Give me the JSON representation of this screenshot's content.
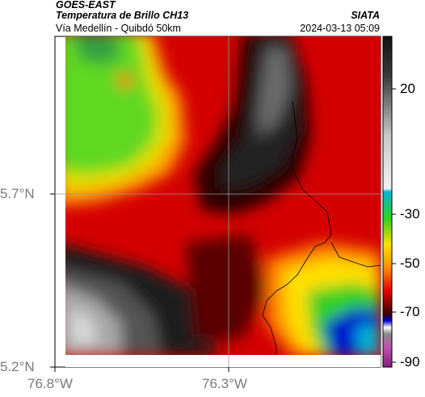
{
  "header": {
    "satellite": "GOES-EAST",
    "product": "Temperatura de Brillo CH13",
    "region": "Vía Medellín - Quibdó 50km",
    "source": "SIATA",
    "datetime": "2024-03-13 05:09"
  },
  "map_data": {
    "lat_labels": [
      "5.7°N",
      "5.2°N"
    ],
    "lon_labels": [
      "76.8°W",
      "76.3°W"
    ],
    "gridlines": true
  },
  "colorbar": {
    "ticks": [
      "20",
      "-30",
      "-50",
      "-70",
      "-90"
    ],
    "colors": {
      "light_gray": "#cfcfcf",
      "dark_gray": "#1a1a1a",
      "cyan": "#00b8d8",
      "green": "#30d020",
      "yellow": "#ffe000",
      "orange": "#ff8c00",
      "red": "#e60000",
      "dark_red": "#5a0000",
      "blue": "#0000cc",
      "magenta": "#c050b0"
    }
  }
}
